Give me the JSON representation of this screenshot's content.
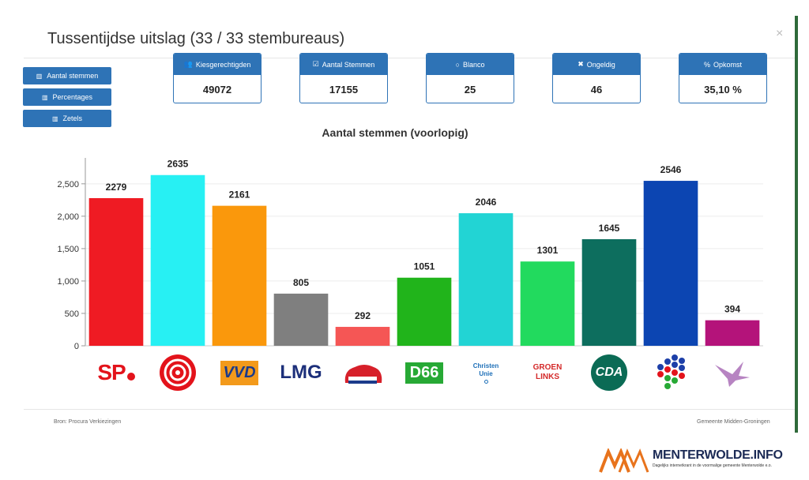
{
  "modal": {
    "title": "Tussentijdse uitslag (33 / 33 stembureaus)",
    "close_symbol": "×"
  },
  "view_buttons": [
    {
      "label": "Aantal stemmen",
      "icon": "bar-chart-icon"
    },
    {
      "label": "Percentages",
      "icon": "bar-chart-icon"
    },
    {
      "label": "Zetels",
      "icon": "bar-chart-icon"
    }
  ],
  "stats": [
    {
      "label": "Kiesgerechtigden",
      "value": "49072",
      "icon": "users-icon",
      "glyph": "👥"
    },
    {
      "label": "Aantal Stemmen",
      "value": "17155",
      "icon": "checkbox-icon",
      "glyph": "☑"
    },
    {
      "label": "Blanco",
      "value": "25",
      "icon": "circle-icon",
      "glyph": "○"
    },
    {
      "label": "Ongeldig",
      "value": "46",
      "icon": "cross-icon",
      "glyph": "✖"
    },
    {
      "label": "Opkomst",
      "value": "35,10 %",
      "icon": "percent-icon",
      "glyph": "%"
    }
  ],
  "chart_data": {
    "type": "bar",
    "title": "Aantal stemmen (voorlopig)",
    "ylim": [
      0,
      2900
    ],
    "yticks": [
      0,
      500,
      1000,
      1500,
      2000,
      2500
    ],
    "ytick_labels": [
      "0",
      "500",
      "1,000",
      "1,500",
      "2,000",
      "2,500"
    ],
    "grid": true,
    "categories": [
      "SP",
      "PvdA",
      "VVD",
      "LMG",
      "PVV",
      "D66",
      "ChristenUnie",
      "GroenLinks",
      "CDA",
      "Groninger Belang",
      "PvdD"
    ],
    "values": [
      2279,
      2635,
      2161,
      805,
      292,
      1051,
      2046,
      1301,
      1645,
      2546,
      394
    ],
    "colors": [
      "#ef1b23",
      "#27f0f3",
      "#fa980c",
      "#7f7f7f",
      "#f55655",
      "#21b41b",
      "#22d4d4",
      "#22da5e",
      "#0d6e5e",
      "#0c45b2",
      "#b4137a"
    ]
  },
  "party_logos": [
    {
      "name": "sp-logo",
      "text": "SP",
      "color": "#e3131b"
    },
    {
      "name": "pvda-logo",
      "text": "",
      "color": "#e3131b"
    },
    {
      "name": "vvd-logo",
      "text": "VVD",
      "color": "#1b3b8b"
    },
    {
      "name": "lmg-logo",
      "text": "LMG",
      "color": "#1c2f7a"
    },
    {
      "name": "pvv-logo",
      "text": "",
      "color": "#d7202a"
    },
    {
      "name": "d66-logo",
      "text": "D66",
      "color": "#27a935"
    },
    {
      "name": "christenunie-logo",
      "text": "Christen Unie",
      "color": "#1d6fb8"
    },
    {
      "name": "groenlinks-logo",
      "text": "GROEN LINKS",
      "color": "#d42a2a"
    },
    {
      "name": "cda-logo",
      "text": "CDA",
      "color": "#0b6b55"
    },
    {
      "name": "groninger-belang-logo",
      "text": "",
      "color": "#1d3fa8"
    },
    {
      "name": "pvdd-logo",
      "text": "",
      "color": "#9a2f8c"
    }
  ],
  "footer": {
    "source": "Bron: Procura Verkiezingen",
    "municipality": "Gemeente Midden-Groningen"
  },
  "watermark": {
    "name": "MENTERWOLDE.INFO",
    "tagline": "Dagelijks internetkrant in de voormalige gemeente Menterwolde e.o."
  },
  "colors": {
    "accent": "#2e73b6",
    "brand_orange": "#e8731c",
    "brand_navy": "#1b2a55"
  }
}
